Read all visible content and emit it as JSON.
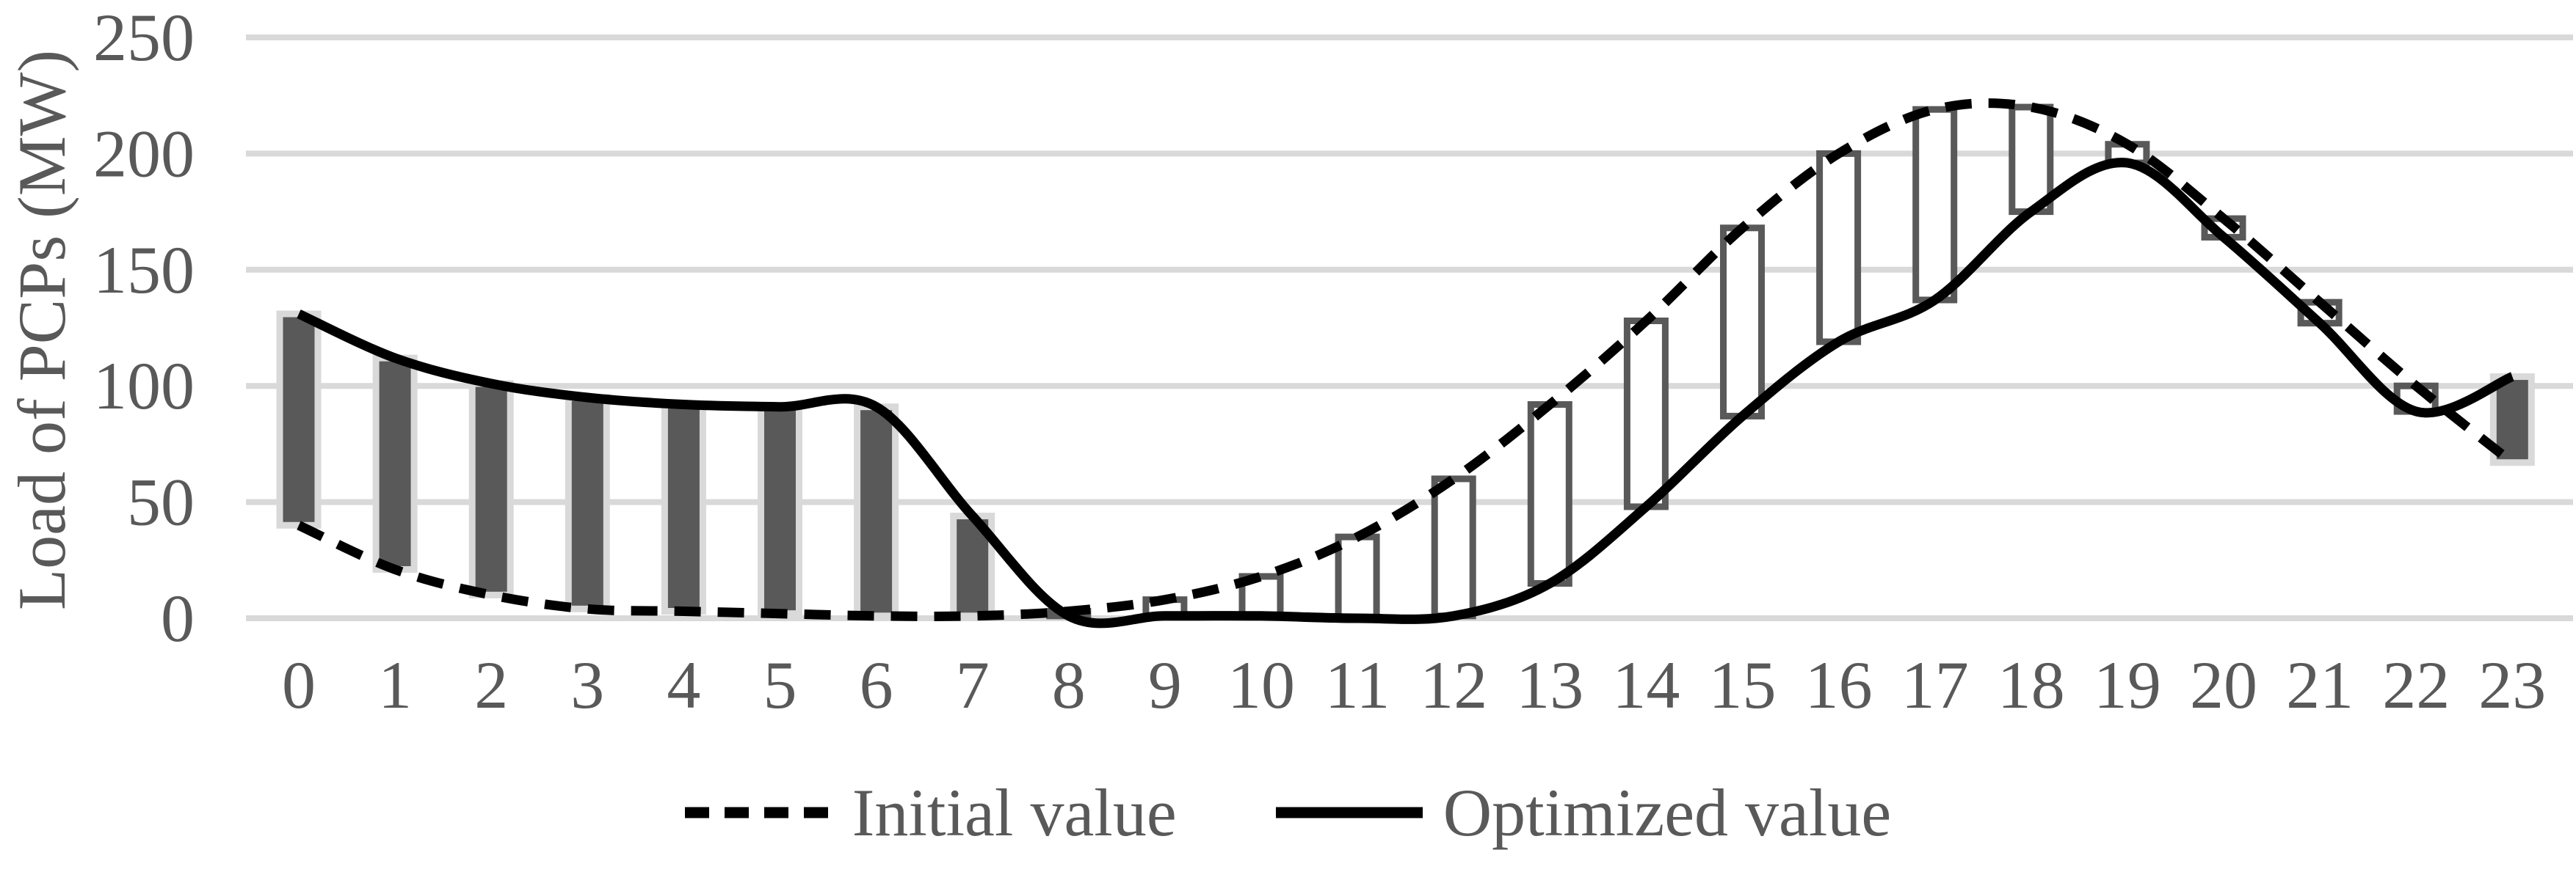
{
  "chart_data": {
    "type": "line",
    "title": "",
    "xlabel": "",
    "ylabel": "Load of PCPs (MW)",
    "x": [
      0,
      1,
      2,
      3,
      4,
      5,
      6,
      7,
      8,
      9,
      10,
      11,
      12,
      13,
      14,
      15,
      16,
      17,
      18,
      19,
      20,
      21,
      22,
      23
    ],
    "series": [
      {
        "name": "Initial value",
        "style": "dashed",
        "values": [
          40,
          21,
          10,
          4,
          3,
          2,
          1,
          1,
          3,
          8,
          18,
          35,
          60,
          92,
          128,
          168,
          200,
          219,
          220,
          204,
          172,
          136,
          100,
          67
        ]
      },
      {
        "name": "Optimized value",
        "style": "solid",
        "values": [
          131,
          112,
          101,
          95,
          92,
          91,
          91,
          44,
          1,
          1,
          1,
          0,
          1,
          15,
          48,
          87,
          119,
          137,
          175,
          196,
          164,
          127,
          89,
          104
        ]
      }
    ],
    "updown_bars": "floating bars span the gap between the two series at each hour; dark filled bar when Optimized > Initial (hours 0-7 and 23), white outlined bar when Initial > Optimized (hours 8-22)",
    "ylim": [
      0,
      250
    ],
    "yticks": [
      0,
      50,
      100,
      150,
      200,
      250
    ],
    "grid": "horizontal",
    "legend_position": "bottom"
  },
  "colors": {
    "background": "#ffffff",
    "grid": "#d9d9d9",
    "text": "#595959",
    "line": "#000000",
    "bar_up_fill": "#595959",
    "bar_up_stroke": "#d9d9d9",
    "bar_down_fill": "#ffffff",
    "bar_down_stroke": "#595959"
  }
}
